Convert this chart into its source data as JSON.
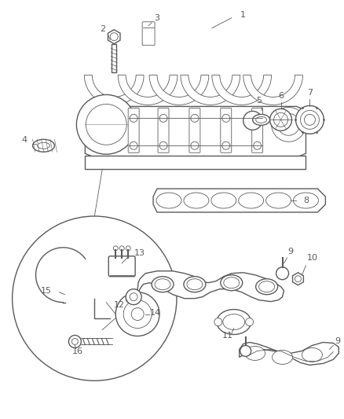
{
  "background_color": "#ffffff",
  "line_color": "#5a5a5a",
  "label_color": "#5a5a5a",
  "figsize": [
    4.38,
    5.33
  ],
  "dpi": 100,
  "lw_main": 1.0,
  "lw_thin": 0.6,
  "lw_thick": 1.4
}
